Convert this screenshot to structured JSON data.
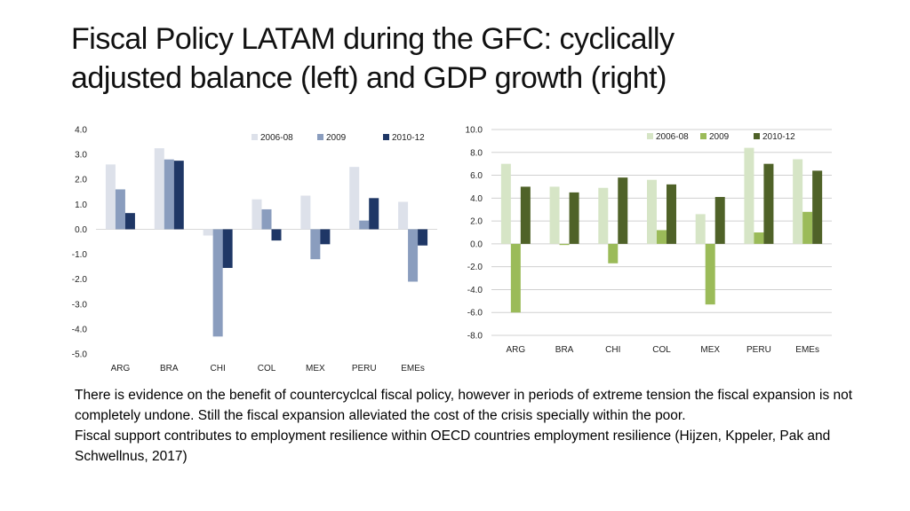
{
  "slide": {
    "title_line1": "Fiscal Policy LATAM during the GFC: cyclically",
    "title_line2": "adjusted balance (left) and GDP growth (right)",
    "paragraph1": "There is evidence on the benefit of countercyclcal fiscal policy, however in periods of extreme tension the fiscal expansion is not completely undone. Still the fiscal expansion alleviated the cost of the crisis specially within the poor.",
    "paragraph2": "Fiscal support contributes to employment resilience within OECD countries employment resilience (Hijzen, Kppeler, Pak and Schwellnus, 2017)"
  },
  "chart_data": [
    {
      "id": "left",
      "type": "bar",
      "title": "",
      "xlabel": "",
      "ylabel": "",
      "categories": [
        "ARG",
        "BRA",
        "CHI",
        "COL",
        "MEX",
        "PERU",
        "EMEs"
      ],
      "ylim": [
        -5.0,
        4.0
      ],
      "yticks": [
        "4.0",
        "3.0",
        "2.0",
        "1.0",
        "0.0",
        "-1.0",
        "-2.0",
        "-3.0",
        "-4.0",
        "-5.0"
      ],
      "ytick_values": [
        4,
        3,
        2,
        1,
        0,
        -1,
        -2,
        -3,
        -4,
        -5
      ],
      "grid": false,
      "legend_position": "top-right",
      "series": [
        {
          "name": "2006-08",
          "color": "#dde1ea",
          "values": [
            2.6,
            3.25,
            -0.25,
            1.2,
            1.35,
            2.5,
            1.1
          ]
        },
        {
          "name": "2009",
          "color": "#8a9dbe",
          "values": [
            1.6,
            2.8,
            -4.3,
            0.8,
            -1.2,
            0.35,
            -2.1
          ]
        },
        {
          "name": "2010-12",
          "color": "#1f3766",
          "values": [
            0.65,
            2.75,
            -1.55,
            -0.45,
            -0.6,
            1.25,
            -0.65
          ]
        }
      ]
    },
    {
      "id": "right",
      "type": "bar",
      "title": "",
      "xlabel": "",
      "ylabel": "",
      "categories": [
        "ARG",
        "BRA",
        "CHI",
        "COL",
        "MEX",
        "PERU",
        "EMEs"
      ],
      "ylim": [
        -8.0,
        10.0
      ],
      "yticks": [
        "10.0",
        "8.0",
        "6.0",
        "4.0",
        "2.0",
        "0.0",
        "-2.0",
        "-4.0",
        "-6.0",
        "-8.0"
      ],
      "ytick_values": [
        10,
        8,
        6,
        4,
        2,
        0,
        -2,
        -4,
        -6,
        -8
      ],
      "grid": true,
      "legend_position": "top-right",
      "series": [
        {
          "name": "2006-08",
          "color": "#d6e5c6",
          "values": [
            7.0,
            5.0,
            4.9,
            5.6,
            2.6,
            8.4,
            7.4
          ]
        },
        {
          "name": "2009",
          "color": "#9bbb59",
          "values": [
            -6.0,
            -0.1,
            -1.7,
            1.2,
            -5.3,
            1.0,
            2.8
          ]
        },
        {
          "name": "2010-12",
          "color": "#4f6228",
          "values": [
            5.0,
            4.5,
            5.8,
            5.2,
            4.1,
            7.0,
            6.4
          ]
        }
      ]
    }
  ]
}
